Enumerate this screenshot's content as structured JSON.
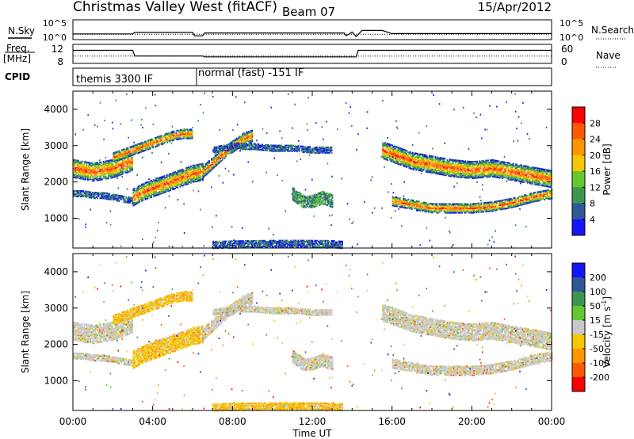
{
  "header": {
    "title": "Christmas Valley West (fitACF)",
    "beam": "Beam 07",
    "date": "15/Apr/2012"
  },
  "strips": {
    "nsky_label": "N.Sky",
    "nsearch_label": "N.Search",
    "freq_label_line1": "Freq.",
    "freq_label_line2": "[MHz]",
    "nave_label": "Nave",
    "cpid_label": "CPID",
    "nsky_ticks": [
      "10^5",
      "10^0"
    ],
    "nsearch_ticks": [
      "10^5",
      "10^0"
    ],
    "freq_ticks": [
      "12",
      "8"
    ],
    "nave_ticks": [
      "60",
      "0"
    ],
    "cpid_segments": [
      {
        "start": "00:00",
        "end": "06:05",
        "label": "themis 3300 IF"
      },
      {
        "start": "06:05",
        "end": "24:00",
        "label": "normal (fast) -151 IF"
      }
    ]
  },
  "chart_data": [
    {
      "type": "line",
      "name": "nsky-nsearch",
      "x_unit": "hours UT",
      "y_scale": "log",
      "ylim": [
        1,
        100000
      ],
      "series": [
        {
          "name": "N.Sky",
          "style": "solid",
          "x": [
            0,
            3,
            3.1,
            6,
            6.1,
            6.5,
            6.6,
            13.6,
            13.7,
            14,
            14.2,
            14.5,
            15.5,
            16,
            24
          ],
          "y": [
            20,
            20,
            60,
            60,
            5,
            5,
            40,
            40,
            5,
            80,
            3,
            250,
            250,
            25,
            25
          ]
        },
        {
          "name": "N.Search",
          "style": "dotted",
          "x": [
            0,
            24
          ],
          "y": [
            15,
            15
          ]
        }
      ]
    },
    {
      "type": "line",
      "name": "freq-nave",
      "x_unit": "hours UT",
      "ylim": [
        7.5,
        13
      ],
      "series": [
        {
          "name": "Freq.",
          "unit": "MHz",
          "style": "solid",
          "x": [
            0,
            3,
            3.1,
            6.5,
            6.6,
            14.2,
            14.3,
            24
          ],
          "y": [
            11.5,
            11.5,
            9.5,
            9.5,
            9.2,
            9.2,
            11.5,
            11.5
          ]
        },
        {
          "name": "Nave",
          "style": "dotted",
          "ylim": [
            0,
            60
          ],
          "x": [
            0,
            24
          ],
          "y": [
            22,
            22
          ]
        }
      ]
    },
    {
      "type": "heatmap",
      "name": "power",
      "xlabel": "",
      "ylabel": "Slant Range [km]",
      "xlim": [
        0,
        24
      ],
      "ylim": [
        180,
        4500
      ],
      "yticks": [
        1000,
        2000,
        3000,
        4000
      ],
      "colorbar": {
        "label": "Power [dB]",
        "ticks": [
          "28",
          "24",
          "20",
          "16",
          "12",
          "8",
          "4"
        ],
        "colors": [
          "#ff0000",
          "#ff5a00",
          "#ff9600",
          "#f5c800",
          "#64c832",
          "#3c9650",
          "#2d5a96",
          "#1414ff"
        ]
      },
      "echo_bands": [
        {
          "name": "band-a",
          "x": [
            0,
            0.5,
            1,
            1.5,
            2,
            2.5,
            3
          ],
          "range": [
            2400,
            2350,
            2300,
            2350,
            2400,
            2500,
            2600
          ],
          "width": 500
        },
        {
          "name": "band-b",
          "x": [
            2,
            2.5,
            3,
            3.5,
            4,
            4.5,
            5,
            5.5,
            6
          ],
          "range": [
            2700,
            2800,
            2900,
            3000,
            3100,
            3200,
            3300,
            3350,
            3350
          ],
          "width": 250
        },
        {
          "name": "band-c",
          "x": [
            3,
            3.5,
            4,
            4.5,
            5,
            5.5,
            6,
            6.5
          ],
          "range": [
            1600,
            1750,
            1850,
            1950,
            2050,
            2150,
            2250,
            2300
          ],
          "width": 450
        },
        {
          "name": "band-d",
          "x": [
            0,
            0.5,
            1,
            1.5,
            2,
            2.5,
            3
          ],
          "range": [
            1700,
            1700,
            1650,
            1650,
            1600,
            1550,
            1500
          ],
          "width": 150
        },
        {
          "name": "band-e",
          "x": [
            6.5,
            7,
            7.5,
            8,
            8.5,
            9
          ],
          "range": [
            2300,
            2550,
            2800,
            3000,
            3200,
            3300
          ],
          "width": 300
        },
        {
          "name": "band-f",
          "x": [
            7,
            8,
            9,
            10,
            11,
            12,
            13
          ],
          "range": [
            2900,
            3000,
            3000,
            2950,
            2950,
            2900,
            2900
          ],
          "width": 150
        },
        {
          "name": "band-g",
          "x": [
            15.5,
            16,
            17,
            18,
            19,
            20,
            21,
            22,
            23,
            24
          ],
          "range": [
            2900,
            2800,
            2600,
            2500,
            2400,
            2350,
            2400,
            2300,
            2200,
            2100
          ],
          "width": 450
        },
        {
          "name": "band-h",
          "x": [
            16,
            17,
            18,
            19,
            20,
            21,
            22,
            23,
            24
          ],
          "range": [
            1500,
            1400,
            1300,
            1300,
            1300,
            1350,
            1450,
            1600,
            1700
          ],
          "width": 250
        },
        {
          "name": "band-i",
          "x": [
            7,
            9,
            11,
            13,
            13.5
          ],
          "range": [
            300,
            320,
            330,
            320,
            300
          ],
          "width": 200
        },
        {
          "name": "band-j",
          "x": [
            11,
            11.5,
            12,
            12.5,
            13
          ],
          "range": [
            1700,
            1500,
            1500,
            1600,
            1500
          ],
          "width": 350
        }
      ]
    },
    {
      "type": "heatmap",
      "name": "velocity",
      "xlabel": "Time UT",
      "ylabel": "Slant Range [km]",
      "xlim": [
        0,
        24
      ],
      "xticks": [
        "00:00",
        "04:00",
        "08:00",
        "12:00",
        "16:00",
        "20:00",
        "00:00"
      ],
      "ylim": [
        180,
        4500
      ],
      "yticks": [
        1000,
        2000,
        3000,
        4000
      ],
      "colorbar": {
        "label": "Velocity [m s",
        "label_sup": "-1",
        "label_end": "]",
        "ticks": [
          "200",
          "100",
          "50",
          "15",
          "-15",
          "-50",
          "-100",
          "-200"
        ],
        "colors": [
          "#1414ff",
          "#2d5a96",
          "#3c9650",
          "#64c832",
          "#c8c8c8",
          "#f5c800",
          "#ff9600",
          "#ff5a00",
          "#ff0000"
        ]
      }
    }
  ]
}
